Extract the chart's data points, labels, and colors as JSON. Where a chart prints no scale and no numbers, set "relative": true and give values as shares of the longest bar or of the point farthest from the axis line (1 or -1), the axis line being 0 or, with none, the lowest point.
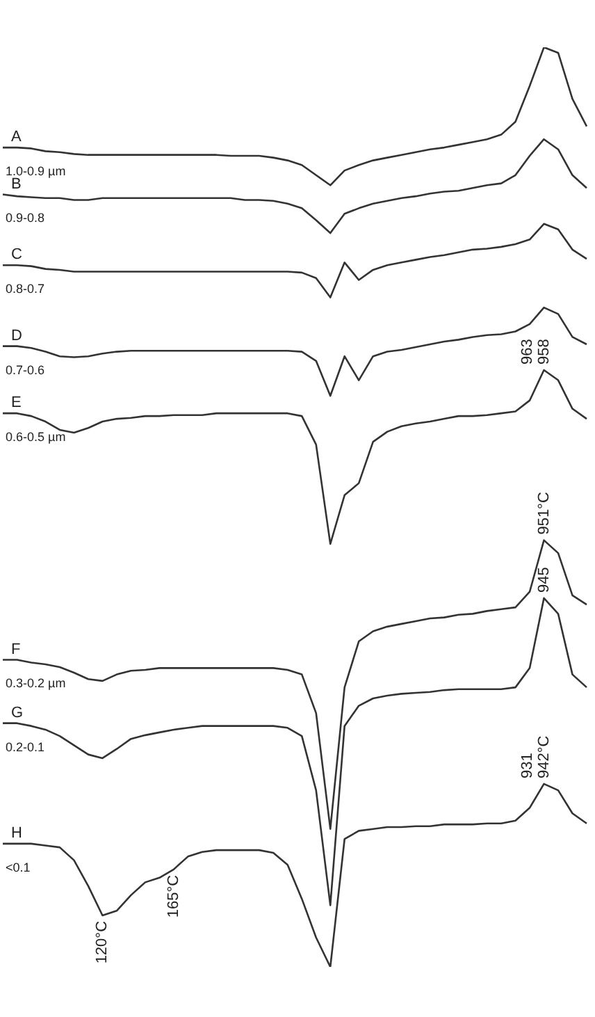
{
  "chart_data": {
    "type": "line",
    "relative": true,
    "legend": false,
    "marker": "none",
    "line_style": "solid",
    "categories": [
      null,
      null,
      null,
      null,
      null,
      null,
      null,
      null,
      null,
      null,
      null,
      null,
      null,
      null,
      null,
      null,
      null,
      null,
      null,
      null,
      null,
      null,
      null,
      null,
      null,
      null,
      null,
      null,
      null,
      null,
      null,
      null,
      null,
      null,
      null,
      null,
      null,
      null,
      null,
      null,
      null,
      null
    ],
    "series": [
      {
        "name": "A\n1.0-0.9 µm",
        "color": "#333333",
        "values": [
          0.891,
          0.891,
          0.89,
          0.887,
          0.886,
          0.884,
          0.883,
          0.883,
          0.883,
          0.883,
          0.883,
          0.883,
          0.883,
          0.883,
          0.883,
          0.883,
          0.882,
          0.882,
          0.882,
          0.88,
          0.877,
          0.872,
          0.861,
          0.85,
          0.866,
          0.872,
          0.877,
          0.88,
          0.883,
          0.886,
          0.889,
          0.891,
          0.894,
          0.897,
          0.9,
          0.905,
          0.919,
          0.958,
          1,
          0.994,
          0.944,
          0.914
        ]
      },
      {
        "name": "B\n0.9-0.8",
        "color": "#333333",
        "values": [
          0.84,
          0.838,
          0.837,
          0.836,
          0.836,
          0.834,
          0.834,
          0.836,
          0.836,
          0.836,
          0.836,
          0.836,
          0.836,
          0.836,
          0.836,
          0.836,
          0.836,
          0.834,
          0.834,
          0.833,
          0.83,
          0.825,
          0.812,
          0.798,
          0.819,
          0.825,
          0.83,
          0.833,
          0.836,
          0.838,
          0.841,
          0.843,
          0.844,
          0.847,
          0.85,
          0.852,
          0.861,
          0.882,
          0.9,
          0.889,
          0.861,
          0.847
        ]
      },
      {
        "name": "C\n0.8-0.7",
        "color": "#333333",
        "values": [
          0.763,
          0.763,
          0.762,
          0.759,
          0.758,
          0.756,
          0.756,
          0.756,
          0.756,
          0.756,
          0.756,
          0.756,
          0.756,
          0.756,
          0.756,
          0.756,
          0.756,
          0.756,
          0.756,
          0.756,
          0.756,
          0.755,
          0.749,
          0.728,
          0.766,
          0.747,
          0.758,
          0.763,
          0.766,
          0.769,
          0.772,
          0.774,
          0.777,
          0.78,
          0.781,
          0.783,
          0.786,
          0.791,
          0.808,
          0.802,
          0.78,
          0.77
        ]
      },
      {
        "name": "D\n0.7-0.6",
        "color": "#333333",
        "values": [
          0.675,
          0.675,
          0.673,
          0.669,
          0.664,
          0.663,
          0.664,
          0.667,
          0.669,
          0.67,
          0.67,
          0.67,
          0.67,
          0.67,
          0.67,
          0.67,
          0.67,
          0.67,
          0.67,
          0.67,
          0.67,
          0.669,
          0.659,
          0.621,
          0.664,
          0.638,
          0.664,
          0.669,
          0.671,
          0.674,
          0.677,
          0.68,
          0.682,
          0.685,
          0.687,
          0.688,
          0.691,
          0.699,
          0.717,
          0.71,
          0.685,
          0.677
        ]
      },
      {
        "name": "E\n0.6-0.5 µm",
        "color": "#333333",
        "values": [
          0.602,
          0.602,
          0.599,
          0.593,
          0.584,
          0.581,
          0.586,
          0.593,
          0.596,
          0.597,
          0.599,
          0.599,
          0.6,
          0.6,
          0.6,
          0.602,
          0.602,
          0.602,
          0.602,
          0.602,
          0.602,
          0.599,
          0.568,
          0.46,
          0.513,
          0.526,
          0.571,
          0.582,
          0.588,
          0.591,
          0.593,
          0.596,
          0.599,
          0.599,
          0.6,
          0.602,
          0.604,
          0.616,
          0.649,
          0.638,
          0.607,
          0.596
        ]
      },
      {
        "name": "F\n0.3-0.2 µm",
        "color": "#333333",
        "values": [
          0.334,
          0.334,
          0.331,
          0.329,
          0.326,
          0.32,
          0.313,
          0.311,
          0.318,
          0.322,
          0.323,
          0.325,
          0.325,
          0.325,
          0.325,
          0.325,
          0.325,
          0.325,
          0.325,
          0.325,
          0.323,
          0.318,
          0.276,
          0.15,
          0.304,
          0.354,
          0.365,
          0.37,
          0.373,
          0.376,
          0.379,
          0.38,
          0.383,
          0.384,
          0.387,
          0.389,
          0.391,
          0.408,
          0.464,
          0.45,
          0.404,
          0.394
        ]
      },
      {
        "name": "G\n0.2-0.1",
        "color": "#333333",
        "values": [
          0.265,
          0.265,
          0.262,
          0.258,
          0.251,
          0.241,
          0.231,
          0.227,
          0.237,
          0.248,
          0.252,
          0.255,
          0.258,
          0.26,
          0.262,
          0.262,
          0.262,
          0.262,
          0.262,
          0.262,
          0.26,
          0.251,
          0.192,
          0.067,
          0.262,
          0.284,
          0.292,
          0.295,
          0.297,
          0.298,
          0.299,
          0.301,
          0.302,
          0.302,
          0.302,
          0.302,
          0.304,
          0.325,
          0.401,
          0.384,
          0.318,
          0.304
        ]
      },
      {
        "name": "H\n<0.1",
        "color": "#333333",
        "values": [
          0.134,
          0.134,
          0.134,
          0.132,
          0.13,
          0.116,
          0.088,
          0.056,
          0.061,
          0.078,
          0.092,
          0.097,
          0.106,
          0.12,
          0.125,
          0.127,
          0.127,
          0.127,
          0.127,
          0.124,
          0.111,
          0.074,
          0.032,
          0,
          0.139,
          0.148,
          0.15,
          0.152,
          0.152,
          0.153,
          0.153,
          0.155,
          0.155,
          0.155,
          0.156,
          0.156,
          0.159,
          0.173,
          0.199,
          0.192,
          0.167,
          0.156
        ]
      }
    ],
    "annotations": [
      {
        "text": "951°C",
        "y": 0.464
      },
      {
        "text": "945",
        "y": 0.401
      },
      {
        "text": "942°C",
        "y": 0.199
      },
      "931",
      {
        "text": "958",
        "y": 0.649
      },
      "963",
      {
        "text": "120°C",
        "y": 0.056
      },
      {
        "text": "165°C",
        "y": 0.106
      }
    ]
  }
}
